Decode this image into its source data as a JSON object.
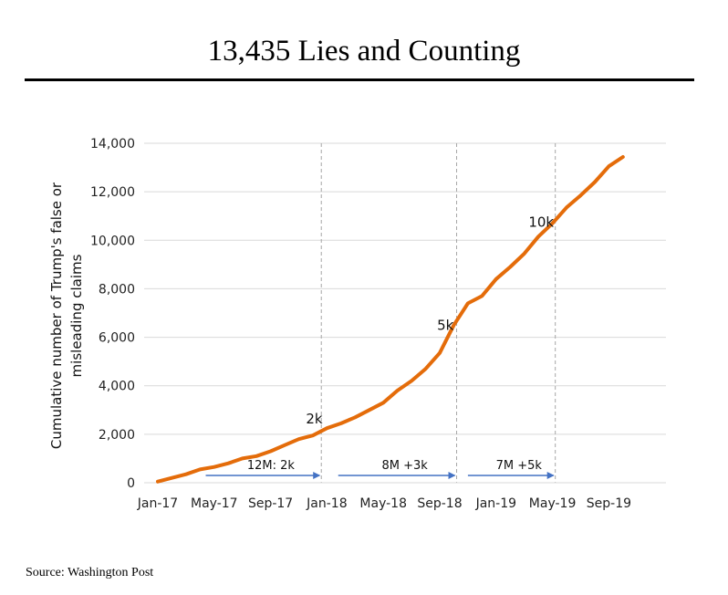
{
  "header": {
    "title": "13,435 Lies and Counting"
  },
  "footer": {
    "source": "Source: Washington Post"
  },
  "chart_data": {
    "type": "line",
    "title": "13,435 Lies and Counting",
    "xlabel": "",
    "ylabel": [
      "Cumulative number of Trump's false or",
      "misleading claims"
    ],
    "ylim": [
      0,
      14000
    ],
    "yticks": [
      0,
      2000,
      4000,
      6000,
      8000,
      10000,
      12000,
      14000
    ],
    "ytick_labels": [
      "0",
      "2,000",
      "4,000",
      "6,000",
      "8,000",
      "10,000",
      "12,000",
      "14,000"
    ],
    "xlim_month_index": [
      0,
      34
    ],
    "xtick_labels": [
      "Jan-17",
      "May-17",
      "Sep-17",
      "Jan-18",
      "May-18",
      "Sep-18",
      "Jan-19",
      "May-19",
      "Sep-19"
    ],
    "xtick_month_index": [
      0,
      4,
      8,
      12,
      16,
      20,
      24,
      28,
      32
    ],
    "grid": "horizontal",
    "series": [
      {
        "color": "#E46C0A",
        "month_index": [
          0,
          1,
          2,
          3,
          4,
          5,
          6,
          7,
          8,
          9,
          10,
          11,
          12,
          13,
          14,
          15,
          16,
          17,
          18,
          19,
          20,
          21,
          22,
          23,
          24,
          25,
          26,
          27,
          28,
          29,
          30,
          31,
          32,
          33,
          34
        ],
        "values": [
          50,
          200,
          350,
          550,
          650,
          800,
          1000,
          1100,
          1300,
          1550,
          1800,
          1950,
          2250,
          2450,
          2700,
          3000,
          3300,
          3800,
          4200,
          4700,
          5350,
          6500,
          7400,
          7700,
          8400,
          8900,
          9450,
          10150,
          10700,
          11350,
          11850,
          12400,
          13050,
          13435,
          null
        ]
      }
    ],
    "reference_lines_month_index": [
      11.6,
      21.2,
      28.2
    ],
    "annotations": [
      {
        "text": "2k",
        "x_month": 11.1,
        "y": 2450
      },
      {
        "text": "5k",
        "x_month": 20.4,
        "y": 6300
      },
      {
        "text": "10k",
        "x_month": 27.2,
        "y": 10550
      }
    ],
    "period_arrows": [
      {
        "label": "12M: 2k",
        "from_month": 3.4,
        "to_month": 11.6
      },
      {
        "label": "8M +3k",
        "from_month": 12.8,
        "to_month": 21.2
      },
      {
        "label": "7M +5k",
        "from_month": 22.0,
        "to_month": 28.2
      }
    ],
    "colors": {
      "line": "#E46C0A",
      "arrow": "#4472C4",
      "grid": "#D9D9D9",
      "reference": "#A6A6A6"
    }
  }
}
